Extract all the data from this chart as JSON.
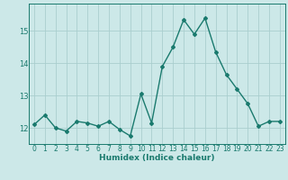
{
  "x": [
    0,
    1,
    2,
    3,
    4,
    5,
    6,
    7,
    8,
    9,
    10,
    11,
    12,
    13,
    14,
    15,
    16,
    17,
    18,
    19,
    20,
    21,
    22,
    23
  ],
  "y": [
    12.1,
    12.4,
    12.0,
    11.9,
    12.2,
    12.15,
    12.05,
    12.2,
    11.95,
    11.75,
    13.05,
    12.15,
    13.9,
    14.5,
    15.35,
    14.9,
    15.4,
    14.35,
    13.65,
    13.2,
    12.75,
    12.05,
    12.2,
    12.2
  ],
  "line_color": "#1a7a6e",
  "bg_color": "#cce8e8",
  "grid_color": "#aacece",
  "xlabel": "Humidex (Indice chaleur)",
  "ylim": [
    11.5,
    15.85
  ],
  "yticks": [
    12,
    13,
    14,
    15
  ],
  "xtick_labels": [
    "0",
    "1",
    "2",
    "3",
    "4",
    "5",
    "6",
    "7",
    "8",
    "9",
    "10",
    "11",
    "12",
    "13",
    "14",
    "15",
    "16",
    "17",
    "18",
    "19",
    "20",
    "21",
    "22",
    "23"
  ],
  "marker": "D",
  "marker_size": 2.0,
  "line_width": 1.0,
  "label_fontsize": 6.5,
  "tick_fontsize": 5.5
}
